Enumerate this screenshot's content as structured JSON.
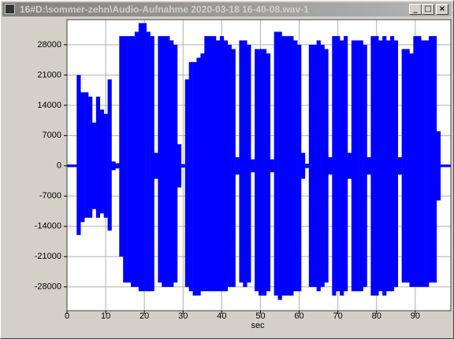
{
  "window": {
    "title": "16#D:\\sommer-zehn\\Audio-Aufnahme 2020-03-18 16-40-08.wav-1"
  },
  "chart_data": {
    "type": "area",
    "x_label": "sec",
    "x": [
      0,
      1,
      2,
      3,
      4,
      5,
      6,
      7,
      8,
      9,
      10,
      11,
      12,
      13,
      14,
      15,
      16,
      17,
      18,
      19,
      20,
      21,
      22,
      23,
      24,
      25,
      26,
      27,
      28,
      29,
      30,
      31,
      32,
      33,
      34,
      35,
      36,
      37,
      38,
      39,
      40,
      41,
      42,
      43,
      44,
      45,
      46,
      47,
      48,
      49,
      50,
      51,
      52,
      53,
      54,
      55,
      56,
      57,
      58,
      59,
      60,
      61,
      62,
      63,
      64,
      65,
      66,
      67,
      68,
      69,
      70,
      71,
      72,
      73,
      74,
      75,
      76,
      77,
      78,
      79,
      80,
      81,
      82,
      83,
      84,
      85,
      86,
      87,
      88,
      89,
      90,
      91,
      92,
      93,
      94,
      95,
      96,
      97,
      98,
      99
    ],
    "series": [
      {
        "color": "#0000ff",
        "values": [
          300,
          300,
          300,
          21000,
          17000,
          17000,
          16000,
          10000,
          16000,
          13000,
          12000,
          20000,
          1000,
          600,
          30000,
          30000,
          30000,
          30000,
          31000,
          33000,
          33000,
          31000,
          30000,
          3000,
          30000,
          30000,
          30000,
          29000,
          28000,
          5000,
          400,
          20000,
          24000,
          24000,
          25000,
          26000,
          30000,
          30000,
          30000,
          29000,
          30000,
          29000,
          28000,
          27000,
          2000,
          29000,
          29000,
          28000,
          1500,
          27000,
          27000,
          27000,
          26000,
          1500,
          31000,
          31000,
          30000,
          30000,
          30000,
          29000,
          28000,
          3000,
          500,
          28000,
          28000,
          29000,
          28000,
          27000,
          2000,
          30000,
          30000,
          29000,
          30000,
          3000,
          29000,
          29000,
          29000,
          28000,
          2000,
          30000,
          30000,
          29000,
          30000,
          29000,
          30000,
          29000,
          2000,
          27000,
          27000,
          26000,
          30000,
          30000,
          29000,
          29000,
          30000,
          30000,
          8000,
          300,
          300,
          300
        ]
      },
      {
        "color": "#0000ff",
        "values": [
          -300,
          -300,
          -300,
          -16000,
          -13000,
          -12000,
          -12000,
          -10000,
          -12000,
          -11000,
          -12000,
          -15000,
          -1000,
          -600,
          -21000,
          -27000,
          -27000,
          -28000,
          -28000,
          -29000,
          -29000,
          -29000,
          -29000,
          -3000,
          -27000,
          -28000,
          -28000,
          -28000,
          -27000,
          -5000,
          -400,
          -28000,
          -29000,
          -30000,
          -30000,
          -29000,
          -29000,
          -29000,
          -29000,
          -29000,
          -29000,
          -29000,
          -28000,
          -28000,
          -2000,
          -27000,
          -28000,
          -27000,
          -1500,
          -29000,
          -30000,
          -30000,
          -29000,
          -1500,
          -30000,
          -31000,
          -30000,
          -30000,
          -30000,
          -29000,
          -29000,
          -3000,
          -500,
          -28000,
          -28000,
          -29000,
          -28000,
          -27000,
          -2000,
          -30000,
          -29000,
          -30000,
          -29000,
          -3000,
          -29000,
          -29000,
          -29000,
          -28000,
          -2000,
          -30000,
          -30000,
          -29000,
          -30000,
          -29000,
          -29000,
          -28000,
          -2000,
          -27000,
          -27000,
          -28000,
          -28000,
          -28000,
          -28000,
          -28000,
          -27000,
          -27000,
          -8000,
          -300,
          -300,
          -300
        ]
      }
    ],
    "xlim": [
      0,
      99.2
    ],
    "xticks": [
      0,
      10,
      20,
      30,
      40,
      50,
      60,
      70,
      80,
      90
    ],
    "ylim": [
      -33500,
      33800
    ],
    "yticks": [
      -28000,
      -21000,
      -14000,
      -7000,
      0,
      7000,
      14000,
      21000,
      28000
    ],
    "grid": true
  }
}
